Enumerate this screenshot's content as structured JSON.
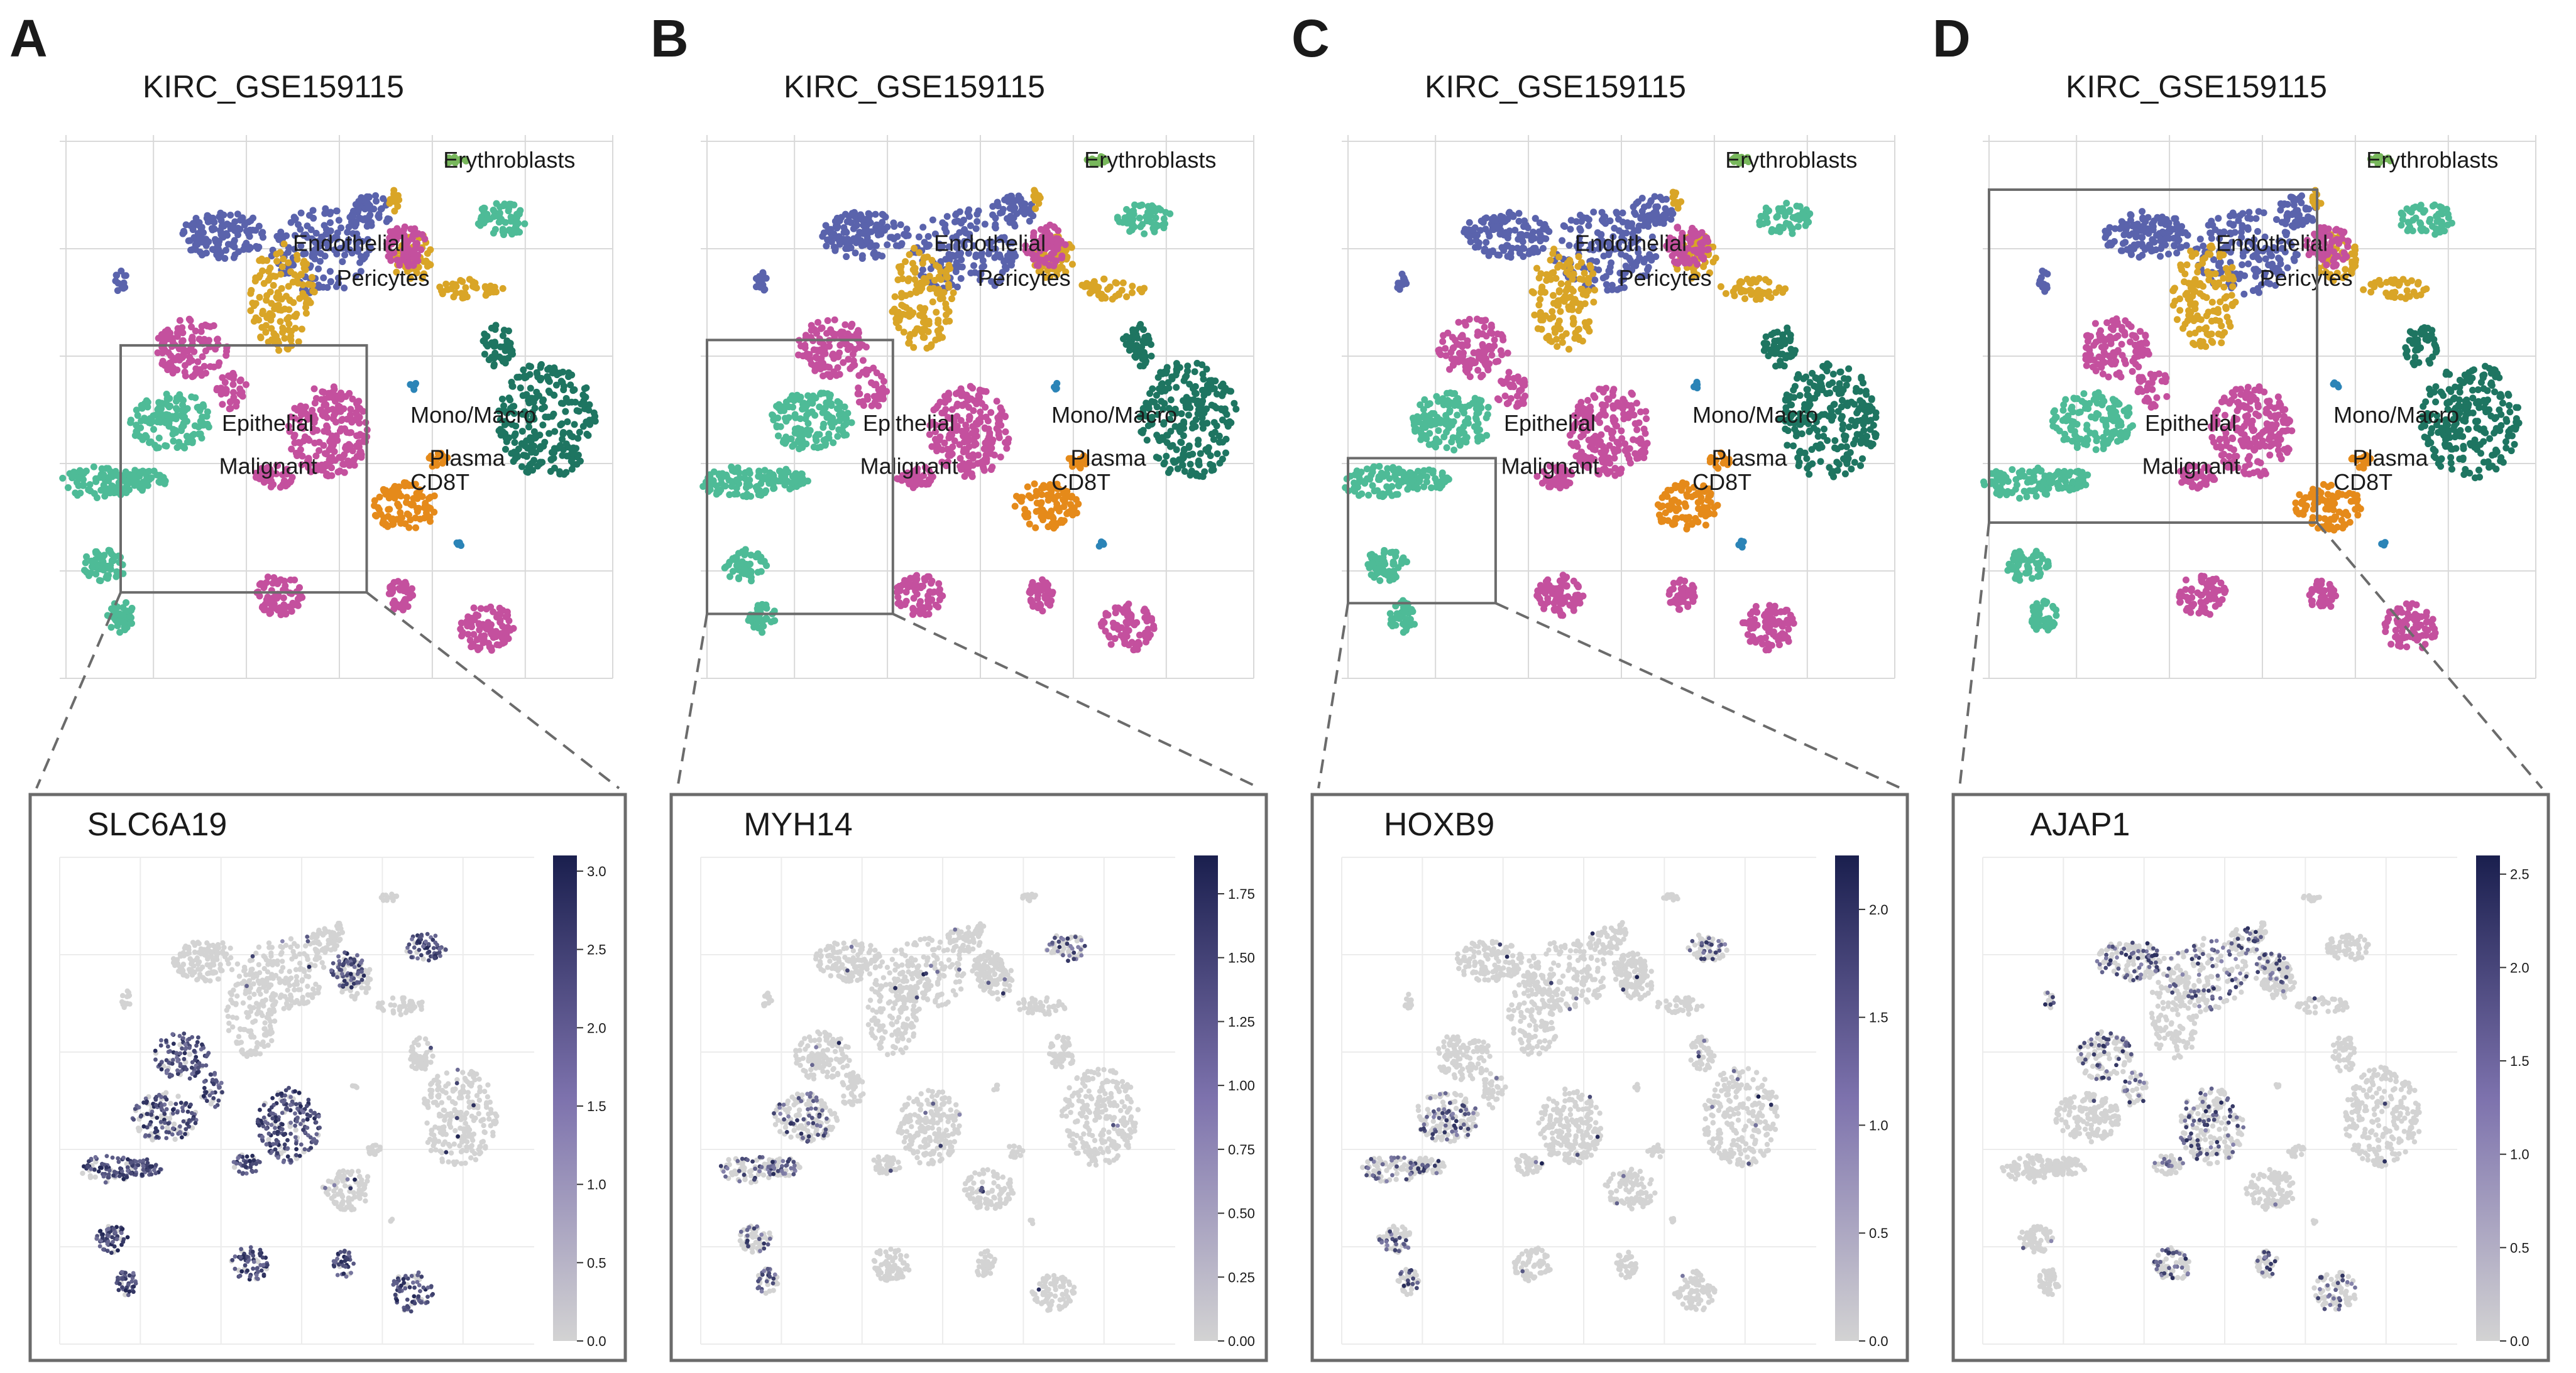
{
  "figure": {
    "panels": [
      {
        "letter": "A",
        "dataset_title": "KIRC_GSE159115",
        "gene": "SLC6A19",
        "cluster_labels": [
          "Erythroblasts",
          "Endothelial",
          "Pericytes",
          "Epithelial",
          "Malignant",
          "Mono/Macro",
          "Plasma",
          "CD8T"
        ],
        "colorbar_ticks": [
          "0.0",
          "0.5",
          "1.0",
          "1.5",
          "2.0",
          "2.5",
          "3.0"
        ]
      },
      {
        "letter": "B",
        "dataset_title": "KIRC_GSE159115",
        "gene": "MYH14",
        "cluster_labels": [
          "Erythroblasts",
          "Endothelial",
          "Pericytes",
          "Epithelial",
          "Malignant",
          "Mono/Macro",
          "Plasma",
          "CD8T"
        ],
        "colorbar_ticks": [
          "0.00",
          "0.25",
          "0.50",
          "0.75",
          "1.00",
          "1.25",
          "1.50",
          "1.75"
        ]
      },
      {
        "letter": "C",
        "dataset_title": "KIRC_GSE159115",
        "gene": "HOXB9",
        "cluster_labels": [
          "Erythroblasts",
          "Endothelial",
          "Pericytes",
          "Epithelial",
          "Malignant",
          "Mono/Macro",
          "Plasma",
          "CD8T"
        ],
        "colorbar_ticks": [
          "0.0",
          "0.5",
          "1.0",
          "1.5",
          "2.0"
        ]
      },
      {
        "letter": "D",
        "dataset_title": "KIRC_GSE159115",
        "gene": "AJAP1",
        "cluster_labels": [
          "Erythroblasts",
          "Endothelial",
          "Pericytes",
          "Epithelial",
          "Malignant",
          "Mono/Macro",
          "Plasma",
          "CD8T"
        ],
        "colorbar_ticks": [
          "0.0",
          "0.5",
          "1.0",
          "1.5",
          "2.0",
          "2.5"
        ]
      }
    ]
  },
  "chart_data": [
    {
      "type": "scatter",
      "panel": "A",
      "title": "KIRC_GSE159115",
      "subplot": {
        "type": "scatter",
        "title": "SLC6A19",
        "colorbar_range": [
          0,
          3.1
        ],
        "colorbar_ticks": [
          0.0,
          0.5,
          1.0,
          1.5,
          2.0,
          2.5,
          3.0
        ],
        "colors": {
          "low": "#d3d3d3",
          "high": "#1a1f4e"
        },
        "high_expression_clusters": [
          "Epithelial",
          "Malignant"
        ]
      },
      "series": [
        {
          "name": "Erythroblasts",
          "color": "#78b85c"
        },
        {
          "name": "Endothelial",
          "color": "#5a63ac"
        },
        {
          "name": "Pericytes",
          "color": "#d9a527"
        },
        {
          "name": "Epithelial",
          "color": "#4ebb97"
        },
        {
          "name": "Malignant",
          "color": "#c4509e"
        },
        {
          "name": "Mono/Macro",
          "color": "#1e7561"
        },
        {
          "name": "Plasma",
          "color": "#2b84b7"
        },
        {
          "name": "CD8T",
          "color": "#e58a1a"
        }
      ],
      "grid": true
    },
    {
      "type": "scatter",
      "panel": "B",
      "title": "KIRC_GSE159115",
      "subplot": {
        "type": "scatter",
        "title": "MYH14",
        "colorbar_range": [
          0,
          1.9
        ],
        "colorbar_ticks": [
          0.0,
          0.25,
          0.5,
          0.75,
          1.0,
          1.25,
          1.5,
          1.75
        ],
        "colors": {
          "low": "#d3d3d3",
          "high": "#1a1f4e"
        },
        "high_expression_clusters": [
          "Epithelial"
        ]
      },
      "series": [
        {
          "name": "Erythroblasts",
          "color": "#78b85c"
        },
        {
          "name": "Endothelial",
          "color": "#5a63ac"
        },
        {
          "name": "Pericytes",
          "color": "#d9a527"
        },
        {
          "name": "Epithelial",
          "color": "#4ebb97"
        },
        {
          "name": "Malignant",
          "color": "#c4509e"
        },
        {
          "name": "Mono/Macro",
          "color": "#1e7561"
        },
        {
          "name": "Plasma",
          "color": "#2b84b7"
        },
        {
          "name": "CD8T",
          "color": "#e58a1a"
        }
      ],
      "grid": true
    },
    {
      "type": "scatter",
      "panel": "C",
      "title": "KIRC_GSE159115",
      "subplot": {
        "type": "scatter",
        "title": "HOXB9",
        "colorbar_range": [
          0,
          2.25
        ],
        "colorbar_ticks": [
          0.0,
          0.5,
          1.0,
          1.5,
          2.0
        ],
        "colors": {
          "low": "#d3d3d3",
          "high": "#1a1f4e"
        },
        "high_expression_clusters": [
          "Epithelial"
        ]
      },
      "series": [
        {
          "name": "Erythroblasts",
          "color": "#78b85c"
        },
        {
          "name": "Endothelial",
          "color": "#5a63ac"
        },
        {
          "name": "Pericytes",
          "color": "#d9a527"
        },
        {
          "name": "Epithelial",
          "color": "#4ebb97"
        },
        {
          "name": "Malignant",
          "color": "#c4509e"
        },
        {
          "name": "Mono/Macro",
          "color": "#1e7561"
        },
        {
          "name": "Plasma",
          "color": "#2b84b7"
        },
        {
          "name": "CD8T",
          "color": "#e58a1a"
        }
      ],
      "grid": true
    },
    {
      "type": "scatter",
      "panel": "D",
      "title": "KIRC_GSE159115",
      "subplot": {
        "type": "scatter",
        "title": "AJAP1",
        "colorbar_range": [
          0,
          2.6
        ],
        "colorbar_ticks": [
          0.0,
          0.5,
          1.0,
          1.5,
          2.0,
          2.5
        ],
        "colors": {
          "low": "#d3d3d3",
          "high": "#1a1f4e"
        },
        "high_expression_clusters": [
          "Endothelial",
          "Malignant"
        ]
      },
      "series": [
        {
          "name": "Erythroblasts",
          "color": "#78b85c"
        },
        {
          "name": "Endothelial",
          "color": "#5a63ac"
        },
        {
          "name": "Pericytes",
          "color": "#d9a527"
        },
        {
          "name": "Epithelial",
          "color": "#4ebb97"
        },
        {
          "name": "Malignant",
          "color": "#c4509e"
        },
        {
          "name": "Mono/Macro",
          "color": "#1e7561"
        },
        {
          "name": "Plasma",
          "color": "#2b84b7"
        },
        {
          "name": "CD8T",
          "color": "#e58a1a"
        }
      ],
      "grid": true
    }
  ]
}
